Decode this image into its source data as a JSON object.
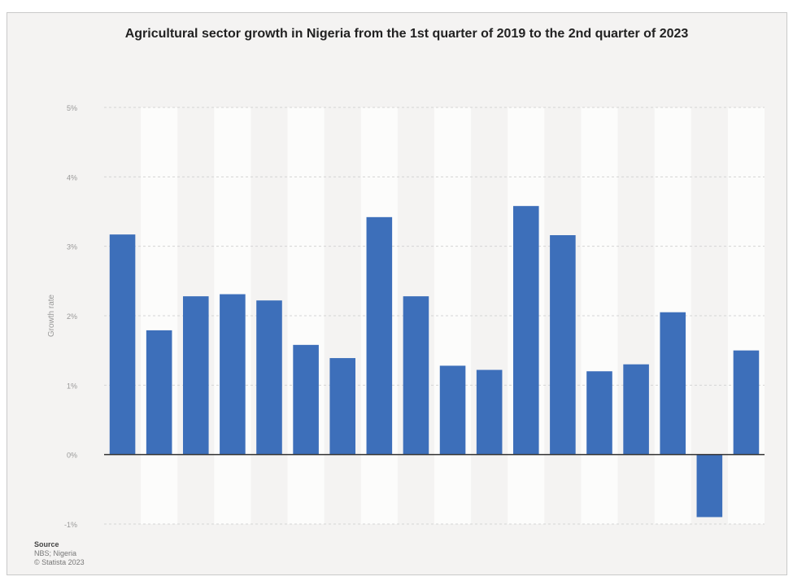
{
  "chart_data": {
    "type": "bar",
    "title": "Agricultural sector growth in Nigeria from the 1st quarter of 2019 to the 2nd quarter of 2023",
    "ylabel": "Growth rate",
    "xlabel": "",
    "y_ticks": [
      "5%",
      "4%",
      "3%",
      "2%",
      "1%",
      "0%",
      "-1%"
    ],
    "ylim": [
      -1,
      5
    ],
    "grid": true,
    "series": [
      {
        "values": [
          3.17,
          1.79,
          2.28,
          2.31,
          2.22,
          1.58,
          1.39,
          3.42,
          2.28,
          1.28,
          1.22,
          3.58,
          3.16,
          1.2,
          1.3,
          2.05,
          -0.9,
          1.5
        ],
        "color": "#3d6fba"
      }
    ]
  },
  "source": {
    "label": "Source",
    "line1": "NBS; Nigeria",
    "line2": "© Statista 2023"
  }
}
